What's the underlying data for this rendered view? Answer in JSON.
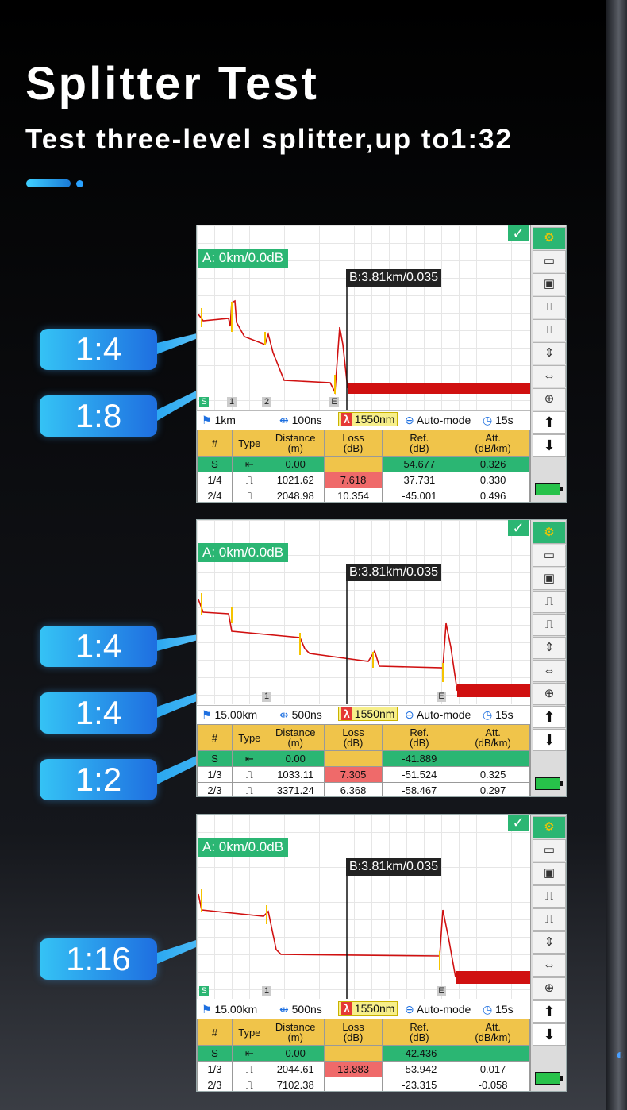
{
  "title": "Splitter Test",
  "subtitle": "Test three-level splitter,up to1:32",
  "callouts": [
    {
      "label": "1:4"
    },
    {
      "label": "1:8"
    },
    {
      "label": "1:4"
    },
    {
      "label": "1:4"
    },
    {
      "label": "1:2"
    },
    {
      "label": "1:16"
    }
  ],
  "screens": [
    {
      "marker_a": "A: 0km/0.0dB",
      "marker_b": "B:3.81km/0.035",
      "events": [
        "S",
        "1",
        "2",
        "E"
      ],
      "status": {
        "range": "1km",
        "pulse": "100ns",
        "wavelength": "1550nm",
        "mode": "Auto-mode",
        "time": "15s"
      },
      "headers": [
        "#",
        "Type",
        "Distance\n(m)",
        "Loss\n(dB)",
        "Ref.\n(dB)",
        "Att.\n(dB/km)"
      ],
      "rows": [
        {
          "id": "S",
          "distance": "0.00",
          "loss": "",
          "ref": "54.677",
          "att": "0.326"
        },
        {
          "id": "1/4",
          "distance": "1021.62",
          "loss": "7.618",
          "ref": "37.731",
          "att": "0.330"
        },
        {
          "id": "2/4",
          "distance": "2048.98",
          "loss": "10.354",
          "ref": "-45.001",
          "att": "0.496"
        }
      ]
    },
    {
      "marker_a": "A: 0km/0.0dB",
      "marker_b": "B:3.81km/0.035",
      "events": [
        "1",
        "E"
      ],
      "status": {
        "range": "15.00km",
        "pulse": "500ns",
        "wavelength": "1550nm",
        "mode": "Auto-mode",
        "time": "15s"
      },
      "headers": [
        "#",
        "Type",
        "Distance\n(m)",
        "Loss\n(dB)",
        "Ref.\n(dB)",
        "Att.\n(dB/km)"
      ],
      "rows": [
        {
          "id": "S",
          "distance": "0.00",
          "loss": "",
          "ref": "-41.889",
          "att": ""
        },
        {
          "id": "1/3",
          "distance": "1033.11",
          "loss": "7.305",
          "ref": "-51.524",
          "att": "0.325"
        },
        {
          "id": "2/3",
          "distance": "3371.24",
          "loss": "6.368",
          "ref": "-58.467",
          "att": "0.297"
        }
      ]
    },
    {
      "marker_a": "A: 0km/0.0dB",
      "marker_b": "B:3.81km/0.035",
      "events": [
        "S",
        "1",
        "E"
      ],
      "status": {
        "range": "15.00km",
        "pulse": "500ns",
        "wavelength": "1550nm",
        "mode": "Auto-mode",
        "time": "15s"
      },
      "headers": [
        "#",
        "Type",
        "Distance\n(m)",
        "Loss\n(dB)",
        "Ref.\n(dB)",
        "Att.\n(dB/km)"
      ],
      "rows": [
        {
          "id": "S",
          "distance": "0.00",
          "loss": "",
          "ref": "-42.436",
          "att": ""
        },
        {
          "id": "1/3",
          "distance": "2044.61",
          "loss": "13.883",
          "ref": "-53.942",
          "att": "0.017"
        },
        {
          "id": "2/3",
          "distance": "7102.38",
          "loss": "",
          "ref": "-23.315",
          "att": "-0.058"
        }
      ]
    }
  ],
  "icons": {
    "sidebar": [
      "gear-icon",
      "folder-icon",
      "save-icon",
      "pulse-left-icon",
      "pulse-center-icon",
      "zoom-vertical-icon",
      "zoom-horizontal-icon",
      "zoom-fit-icon",
      "arrow-up-icon",
      "arrow-down-icon",
      "battery-icon"
    ]
  }
}
